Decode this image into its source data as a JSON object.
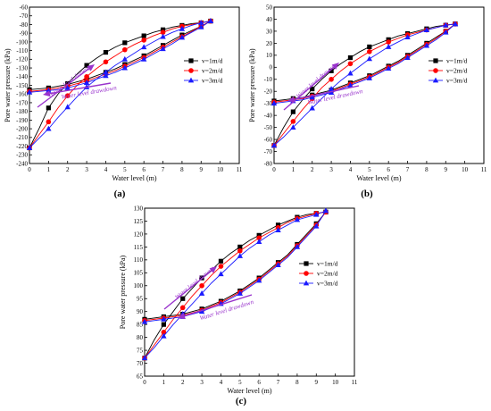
{
  "chart_data": [
    {
      "panel": "(a)",
      "type": "line",
      "xlabel": "Water level (m)",
      "ylabel": "Pore water pressure (kPa)",
      "xlim": [
        0,
        11
      ],
      "ylim": [
        -240,
        -60
      ],
      "xticks": [
        0,
        1,
        2,
        3,
        4,
        5,
        6,
        7,
        8,
        9,
        10,
        11
      ],
      "yticks": [
        -240,
        -230,
        -220,
        -210,
        -200,
        -190,
        -180,
        -170,
        -160,
        -150,
        -140,
        -130,
        -120,
        -110,
        -100,
        -90,
        -80,
        -70,
        -60
      ],
      "grid": false,
      "legend": "right",
      "annotations": [
        "Water level drawup",
        "Water level drawdown"
      ],
      "x": [
        0,
        0.5,
        1,
        1.5,
        2,
        2.5,
        3,
        3.5,
        4,
        4.5,
        5,
        5.5,
        6,
        6.5,
        7,
        7.5,
        8,
        8.5,
        9,
        9.5
      ],
      "series": [
        {
          "name": "v=1m/d",
          "marker": "square",
          "rise": [
            -222,
            -200,
            -176,
            -160,
            -148,
            -137,
            -127,
            -119,
            -112,
            -106,
            -101,
            -97,
            -93,
            -89,
            -86,
            -83,
            -81,
            -79,
            -78,
            -76
          ],
          "fall": [
            -155,
            -154,
            -153,
            -151,
            -149,
            -146,
            -143,
            -139,
            -135,
            -131,
            -126,
            -121,
            -116,
            -110,
            -104,
            -98,
            -92,
            -87,
            -82,
            -76
          ]
        },
        {
          "name": "v=2m/d",
          "marker": "circle",
          "rise": [
            -222,
            -207,
            -192,
            -176,
            -162,
            -150,
            -140,
            -131,
            -123,
            -116,
            -109,
            -103,
            -98,
            -93,
            -89,
            -85,
            -82,
            -80,
            -78,
            -76
          ],
          "fall": [
            -157,
            -156,
            -155,
            -153,
            -151,
            -148,
            -145,
            -141,
            -137,
            -133,
            -128,
            -123,
            -118,
            -112,
            -106,
            -100,
            -94,
            -88,
            -82,
            -76
          ]
        },
        {
          "name": "v=3m/d",
          "marker": "triangle",
          "rise": [
            -222,
            -211,
            -200,
            -187,
            -175,
            -163,
            -152,
            -143,
            -135,
            -127,
            -120,
            -113,
            -106,
            -100,
            -94,
            -89,
            -85,
            -81,
            -78,
            -76
          ],
          "fall": [
            -158,
            -157,
            -156,
            -155,
            -153,
            -150,
            -147,
            -143,
            -139,
            -135,
            -130,
            -125,
            -120,
            -114,
            -108,
            -102,
            -95,
            -89,
            -83,
            -76
          ]
        }
      ]
    },
    {
      "panel": "(b)",
      "type": "line",
      "xlabel": "Water level (m)",
      "ylabel": "Pore water pressure (kPa)",
      "xlim": [
        0,
        11
      ],
      "ylim": [
        -80,
        50
      ],
      "xticks": [
        0,
        1,
        2,
        3,
        4,
        5,
        6,
        7,
        8,
        9,
        10,
        11
      ],
      "yticks": [
        -80,
        -70,
        -60,
        -50,
        -40,
        -30,
        -20,
        -10,
        0,
        10,
        20,
        30,
        40,
        50
      ],
      "grid": false,
      "legend": "right",
      "annotations": [
        "Water level drawup",
        "Water level drawdown"
      ],
      "x": [
        0,
        0.5,
        1,
        1.5,
        2,
        2.5,
        3,
        3.5,
        4,
        4.5,
        5,
        5.5,
        6,
        6.5,
        7,
        7.5,
        8,
        8.5,
        9,
        9.5
      ],
      "series": [
        {
          "name": "v=1m/d",
          "marker": "square",
          "rise": [
            -65,
            -50,
            -37,
            -27,
            -18,
            -10,
            -3,
            3,
            8,
            13,
            17,
            20,
            23,
            26,
            28,
            30,
            32,
            34,
            35,
            36
          ],
          "fall": [
            -28,
            -27,
            -26,
            -25,
            -23,
            -21,
            -19,
            -16,
            -13,
            -10,
            -7,
            -3,
            1,
            5,
            10,
            15,
            20,
            25,
            30,
            36
          ]
        },
        {
          "name": "v=2m/d",
          "marker": "circle",
          "rise": [
            -65,
            -55,
            -45,
            -35,
            -26,
            -17,
            -10,
            -3,
            3,
            8,
            13,
            17,
            21,
            24,
            27,
            29,
            31,
            33,
            35,
            36
          ],
          "fall": [
            -29,
            -28,
            -27,
            -26,
            -24,
            -22,
            -20,
            -17,
            -14,
            -11,
            -8,
            -4,
            0,
            4,
            9,
            14,
            19,
            24,
            30,
            36
          ]
        },
        {
          "name": "v=3m/d",
          "marker": "triangle",
          "rise": [
            -65,
            -58,
            -50,
            -42,
            -34,
            -26,
            -18,
            -11,
            -5,
            1,
            7,
            12,
            17,
            21,
            25,
            28,
            31,
            33,
            35,
            36
          ],
          "fall": [
            -30,
            -29,
            -28,
            -27,
            -25,
            -23,
            -21,
            -18,
            -15,
            -12,
            -9,
            -5,
            -1,
            3,
            8,
            13,
            18,
            23,
            29,
            36
          ]
        }
      ]
    },
    {
      "panel": "(c)",
      "type": "line",
      "xlabel": "Water level (m)",
      "ylabel": "Pore water pressure (kPa)",
      "xlim": [
        0,
        11
      ],
      "ylim": [
        65,
        130
      ],
      "xticks": [
        0,
        1,
        2,
        3,
        4,
        5,
        6,
        7,
        8,
        9,
        10,
        11
      ],
      "yticks": [
        65,
        70,
        75,
        80,
        85,
        90,
        95,
        100,
        105,
        110,
        115,
        120,
        125,
        130
      ],
      "grid": false,
      "legend": "right",
      "annotations": [
        "Water level drawup",
        "Water level drawdown"
      ],
      "x": [
        0,
        0.5,
        1,
        1.5,
        2,
        2.5,
        3,
        3.5,
        4,
        4.5,
        5,
        5.5,
        6,
        6.5,
        7,
        7.5,
        8,
        8.5,
        9,
        9.5
      ],
      "series": [
        {
          "name": "v=1m/d",
          "marker": "square",
          "rise": [
            72,
            79,
            85,
            90,
            95,
            99,
            103,
            106,
            109.5,
            112.5,
            115,
            117.5,
            119.5,
            121.5,
            123.5,
            125,
            126.5,
            127.5,
            128,
            128.5
          ],
          "fall": [
            87,
            87.5,
            88,
            88.5,
            89,
            90,
            91,
            92.5,
            94,
            96,
            98,
            100.5,
            103,
            106,
            109,
            112,
            116,
            120,
            124,
            128.5
          ]
        },
        {
          "name": "v=2m/d",
          "marker": "circle",
          "rise": [
            72,
            77,
            82,
            87,
            91.5,
            96,
            100,
            104,
            107.5,
            110.5,
            113.5,
            116,
            118.5,
            120.5,
            122.5,
            124.5,
            126,
            127,
            128,
            128.5
          ],
          "fall": [
            86.5,
            87,
            87.5,
            88,
            88.5,
            89.5,
            90.5,
            92,
            93.5,
            95.5,
            97.5,
            100,
            102.5,
            105.5,
            108.5,
            111.5,
            115.5,
            119.5,
            123.5,
            128.5
          ]
        },
        {
          "name": "v=3m/d",
          "marker": "triangle",
          "rise": [
            72,
            76,
            80.5,
            85,
            89,
            93,
            97,
            101,
            104.5,
            108,
            111.5,
            114.5,
            117,
            119.5,
            121.5,
            123.5,
            125.5,
            126.5,
            127.5,
            129
          ],
          "fall": [
            86,
            86.5,
            87,
            87.5,
            88,
            89,
            90,
            91.5,
            93,
            95,
            97,
            99.5,
            102,
            105,
            108,
            111,
            115,
            119,
            123,
            129
          ]
        }
      ]
    }
  ],
  "series_colors": [
    "#000000",
    "#ff0000",
    "#1a1aff"
  ],
  "annotation_color": "#9933cc"
}
